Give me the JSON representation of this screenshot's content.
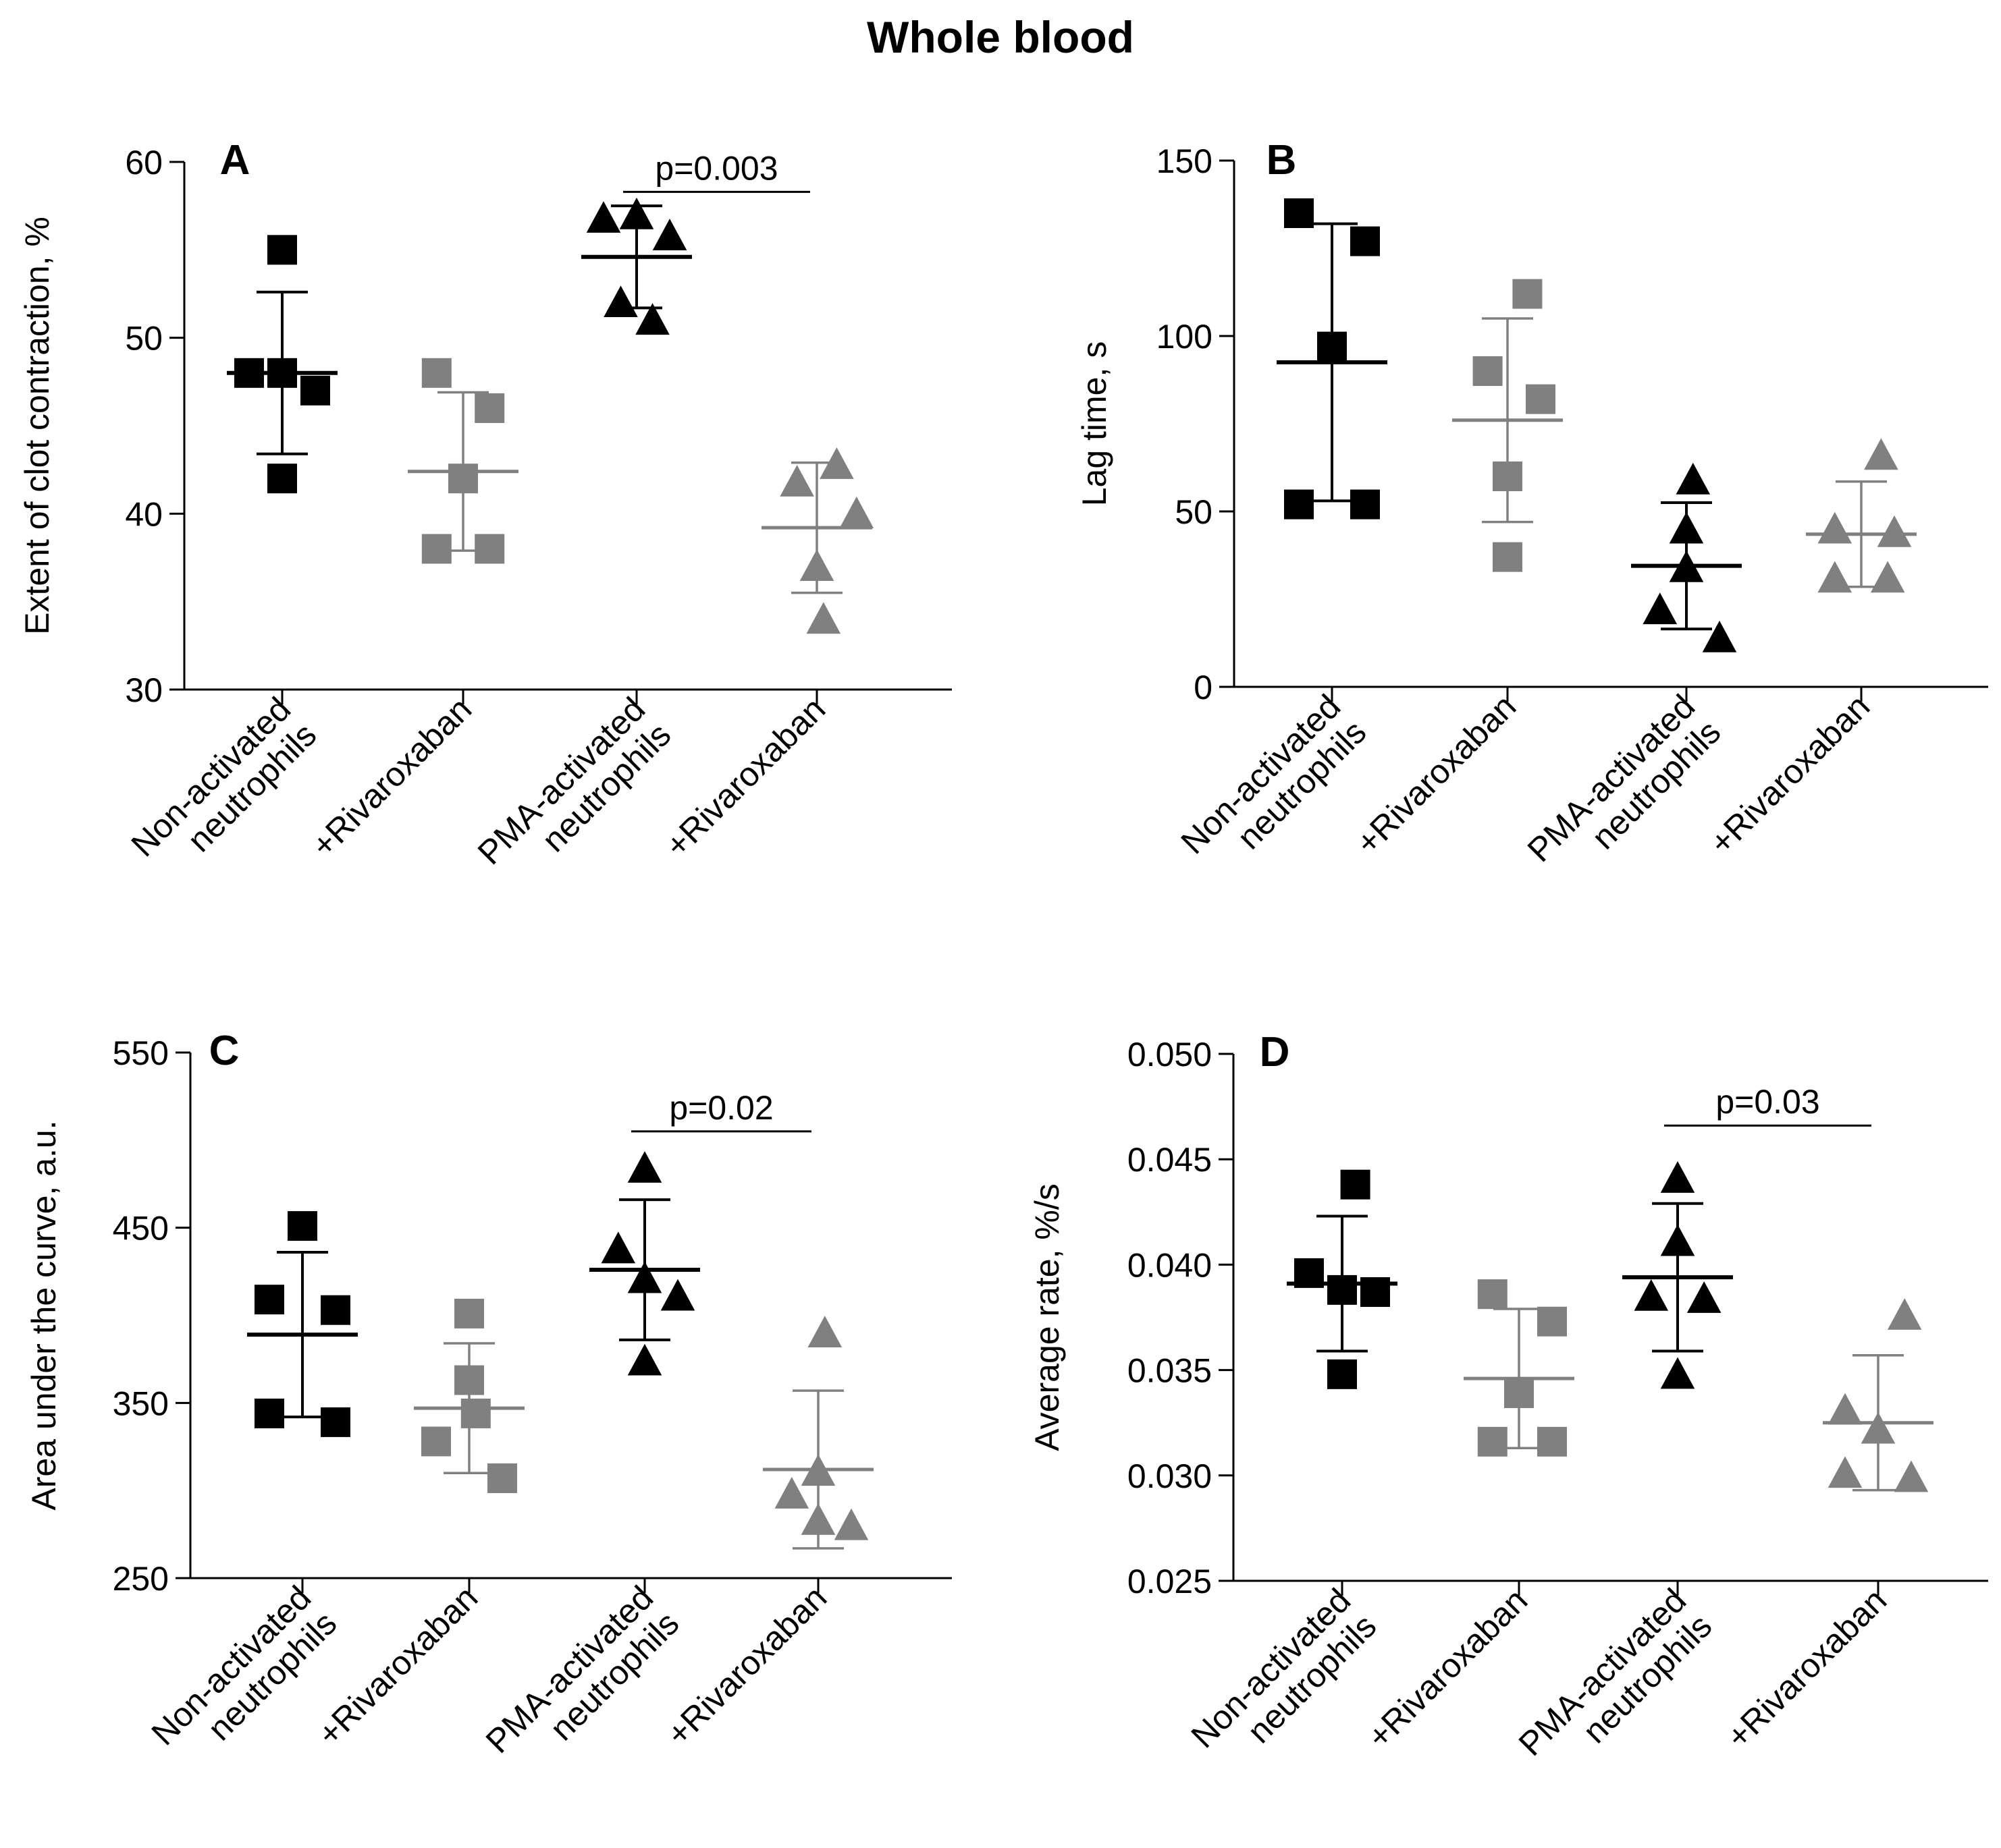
{
  "figure_title": "Whole blood",
  "colors": {
    "black": "#000000",
    "gray": "#808080"
  },
  "chart_data": [
    {
      "id": "A",
      "panel_label": "A",
      "type": "scatter",
      "ylabel": "Extent of clot contraction, %",
      "ylim": [
        30,
        60
      ],
      "yticks": [
        30,
        40,
        50,
        60
      ],
      "tick_labels": [
        "30",
        "40",
        "50",
        "60"
      ],
      "categories": [
        {
          "lines": [
            "Non-activated",
            "neutrophils"
          ],
          "marker": "square",
          "color": "black"
        },
        {
          "lines": [
            "+Rivaroxaban"
          ],
          "marker": "square",
          "color": "gray"
        },
        {
          "lines": [
            "PMA-activated",
            "neutrophils"
          ],
          "marker": "triangle",
          "color": "black"
        },
        {
          "lines": [
            "+Rivaroxaban"
          ],
          "marker": "triangle",
          "color": "gray"
        }
      ],
      "series": [
        {
          "name": "Non-activated neutrophils",
          "points": [
            [
              -0.25,
              48
            ],
            [
              0,
              48
            ],
            [
              0.25,
              47
            ],
            [
              0,
              42
            ],
            [
              0,
              55
            ]
          ],
          "mean": 48,
          "sd": 4.6
        },
        {
          "name": "+Rivaroxaban (non-activated)",
          "points": [
            [
              -0.2,
              48
            ],
            [
              0.2,
              46
            ],
            [
              0,
              42
            ],
            [
              -0.2,
              38
            ],
            [
              0.2,
              38
            ]
          ],
          "mean": 42.4,
          "sd": 4.5
        },
        {
          "name": "PMA-activated neutrophils",
          "points": [
            [
              -0.25,
              56.8
            ],
            [
              0,
              57
            ],
            [
              0.25,
              55.8
            ],
            [
              -0.12,
              52
            ],
            [
              0.12,
              51
            ]
          ],
          "mean": 54.6,
          "sd": 2.9
        },
        {
          "name": "+Rivaroxaban (PMA-activated)",
          "points": [
            [
              -0.15,
              41.8
            ],
            [
              0.15,
              42.8
            ],
            [
              0.3,
              40
            ],
            [
              0,
              37
            ],
            [
              0.05,
              34
            ]
          ],
          "mean": 39.2,
          "sd": 3.7
        }
      ],
      "significance": {
        "label": "p=0.003",
        "from": 2,
        "to": 3,
        "y": 58.3
      }
    },
    {
      "id": "B",
      "panel_label": "B",
      "type": "scatter",
      "ylabel": "Lag time, s",
      "ylim": [
        0,
        150
      ],
      "yticks": [
        0,
        50,
        100,
        150
      ],
      "tick_labels": [
        "0",
        "50",
        "100",
        "150"
      ],
      "categories": [
        {
          "lines": [
            "Non-activated",
            "neutrophils"
          ],
          "marker": "square",
          "color": "black"
        },
        {
          "lines": [
            "+Rivaroxaban"
          ],
          "marker": "square",
          "color": "gray"
        },
        {
          "lines": [
            "PMA-activated",
            "neutrophils"
          ],
          "marker": "triangle",
          "color": "black"
        },
        {
          "lines": [
            "+Rivaroxaban"
          ],
          "marker": "triangle",
          "color": "gray"
        }
      ],
      "series": [
        {
          "name": "Non-activated neutrophils",
          "points": [
            [
              -0.25,
              135
            ],
            [
              0.25,
              127
            ],
            [
              0,
              97
            ],
            [
              -0.25,
              52
            ],
            [
              0.25,
              52
            ]
          ],
          "mean": 92.5,
          "sd": 39.5
        },
        {
          "name": "+Rivaroxaban (non-activated)",
          "points": [
            [
              0.15,
              112
            ],
            [
              -0.15,
              90
            ],
            [
              0.25,
              82
            ],
            [
              0,
              60
            ],
            [
              0,
              37
            ]
          ],
          "mean": 76,
          "sd": 29
        },
        {
          "name": "PMA-activated neutrophils",
          "points": [
            [
              0.05,
              59
            ],
            [
              0,
              45
            ],
            [
              0,
              34
            ],
            [
              -0.2,
              22
            ],
            [
              0.25,
              14
            ]
          ],
          "mean": 34.5,
          "sd": 18
        },
        {
          "name": "+Rivaroxaban (PMA-activated)",
          "points": [
            [
              0.15,
              66
            ],
            [
              -0.2,
              45
            ],
            [
              0.25,
              44
            ],
            [
              -0.2,
              31
            ],
            [
              0.2,
              31
            ]
          ],
          "mean": 43.5,
          "sd": 15
        }
      ],
      "significance": null
    },
    {
      "id": "C",
      "panel_label": "C",
      "type": "scatter",
      "ylabel": "Area under the curve, a.u.",
      "ylim": [
        250,
        550
      ],
      "yticks": [
        250,
        350,
        450,
        550
      ],
      "tick_labels": [
        "250",
        "350",
        "450",
        "550"
      ],
      "categories": [
        {
          "lines": [
            "Non-activated",
            "neutrophils"
          ],
          "marker": "square",
          "color": "black"
        },
        {
          "lines": [
            "+Rivaroxaban"
          ],
          "marker": "square",
          "color": "gray"
        },
        {
          "lines": [
            "PMA-activated",
            "neutrophils"
          ],
          "marker": "triangle",
          "color": "black"
        },
        {
          "lines": [
            "+Rivaroxaban"
          ],
          "marker": "triangle",
          "color": "gray"
        }
      ],
      "series": [
        {
          "name": "Non-activated neutrophils",
          "points": [
            [
              0,
              451
            ],
            [
              -0.25,
              409
            ],
            [
              0.25,
              403
            ],
            [
              -0.25,
              344
            ],
            [
              0.25,
              339
            ]
          ],
          "mean": 389,
          "sd": 47
        },
        {
          "name": "+Rivaroxaban (non-activated)",
          "points": [
            [
              0,
              401
            ],
            [
              0,
              363
            ],
            [
              -0.25,
              328
            ],
            [
              0.25,
              307
            ],
            [
              0.05,
              344
            ]
          ],
          "mean": 347,
          "sd": 37
        },
        {
          "name": "PMA-activated neutrophils",
          "points": [
            [
              0,
              484
            ],
            [
              -0.2,
              438
            ],
            [
              0,
              421
            ],
            [
              0.25,
              411
            ],
            [
              0,
              374
            ]
          ],
          "mean": 426,
          "sd": 40
        },
        {
          "name": "+Rivaroxaban (PMA-activated)",
          "points": [
            [
              0.05,
              390
            ],
            [
              -0.2,
              298
            ],
            [
              0,
              311
            ],
            [
              0,
              283
            ],
            [
              0.25,
              280
            ]
          ],
          "mean": 312,
          "sd": 45
        }
      ],
      "significance": {
        "label": "p=0.02",
        "from": 2,
        "to": 3,
        "y": 505
      }
    },
    {
      "id": "D",
      "panel_label": "D",
      "type": "scatter",
      "ylabel": "Average rate, %/s",
      "ylim": [
        0.025,
        0.05
      ],
      "yticks": [
        0.025,
        0.03,
        0.035,
        0.04,
        0.045,
        0.05
      ],
      "tick_labels": [
        "0.025",
        "0.030",
        "0.035",
        "0.040",
        "0.045",
        "0.050"
      ],
      "categories": [
        {
          "lines": [
            "Non-activated",
            "neutrophils"
          ],
          "marker": "square",
          "color": "black"
        },
        {
          "lines": [
            "+Rivaroxaban"
          ],
          "marker": "square",
          "color": "gray"
        },
        {
          "lines": [
            "PMA-activated",
            "neutrophils"
          ],
          "marker": "triangle",
          "color": "black"
        },
        {
          "lines": [
            "+Rivaroxaban"
          ],
          "marker": "triangle",
          "color": "gray"
        }
      ],
      "series": [
        {
          "name": "Non-activated neutrophils",
          "points": [
            [
              0.1,
              0.0438
            ],
            [
              -0.25,
              0.0396
            ],
            [
              0,
              0.0388
            ],
            [
              0.25,
              0.0387
            ],
            [
              0,
              0.0348
            ]
          ],
          "mean": 0.0391,
          "sd": 0.0032
        },
        {
          "name": "+Rivaroxaban (non-activated)",
          "points": [
            [
              -0.2,
              0.0386
            ],
            [
              0.25,
              0.0373
            ],
            [
              0,
              0.0339
            ],
            [
              -0.2,
              0.0316
            ],
            [
              0.25,
              0.0316
            ]
          ],
          "mean": 0.0346,
          "sd": 0.0033
        },
        {
          "name": "PMA-activated neutrophils",
          "points": [
            [
              0,
              0.0441
            ],
            [
              0,
              0.0411
            ],
            [
              -0.2,
              0.0385
            ],
            [
              0.2,
              0.0384
            ],
            [
              0,
              0.0348
            ]
          ],
          "mean": 0.0394,
          "sd": 0.0035
        },
        {
          "name": "+Rivaroxaban (PMA-activated)",
          "points": [
            [
              0.2,
              0.0376
            ],
            [
              -0.25,
              0.0331
            ],
            [
              0,
              0.0322
            ],
            [
              -0.25,
              0.0301
            ],
            [
              0.25,
              0.0299
            ]
          ],
          "mean": 0.0325,
          "sd": 0.0032
        }
      ],
      "significance": {
        "label": "p=0.03",
        "from": 2,
        "to": 3,
        "y": 0.0466
      }
    }
  ]
}
